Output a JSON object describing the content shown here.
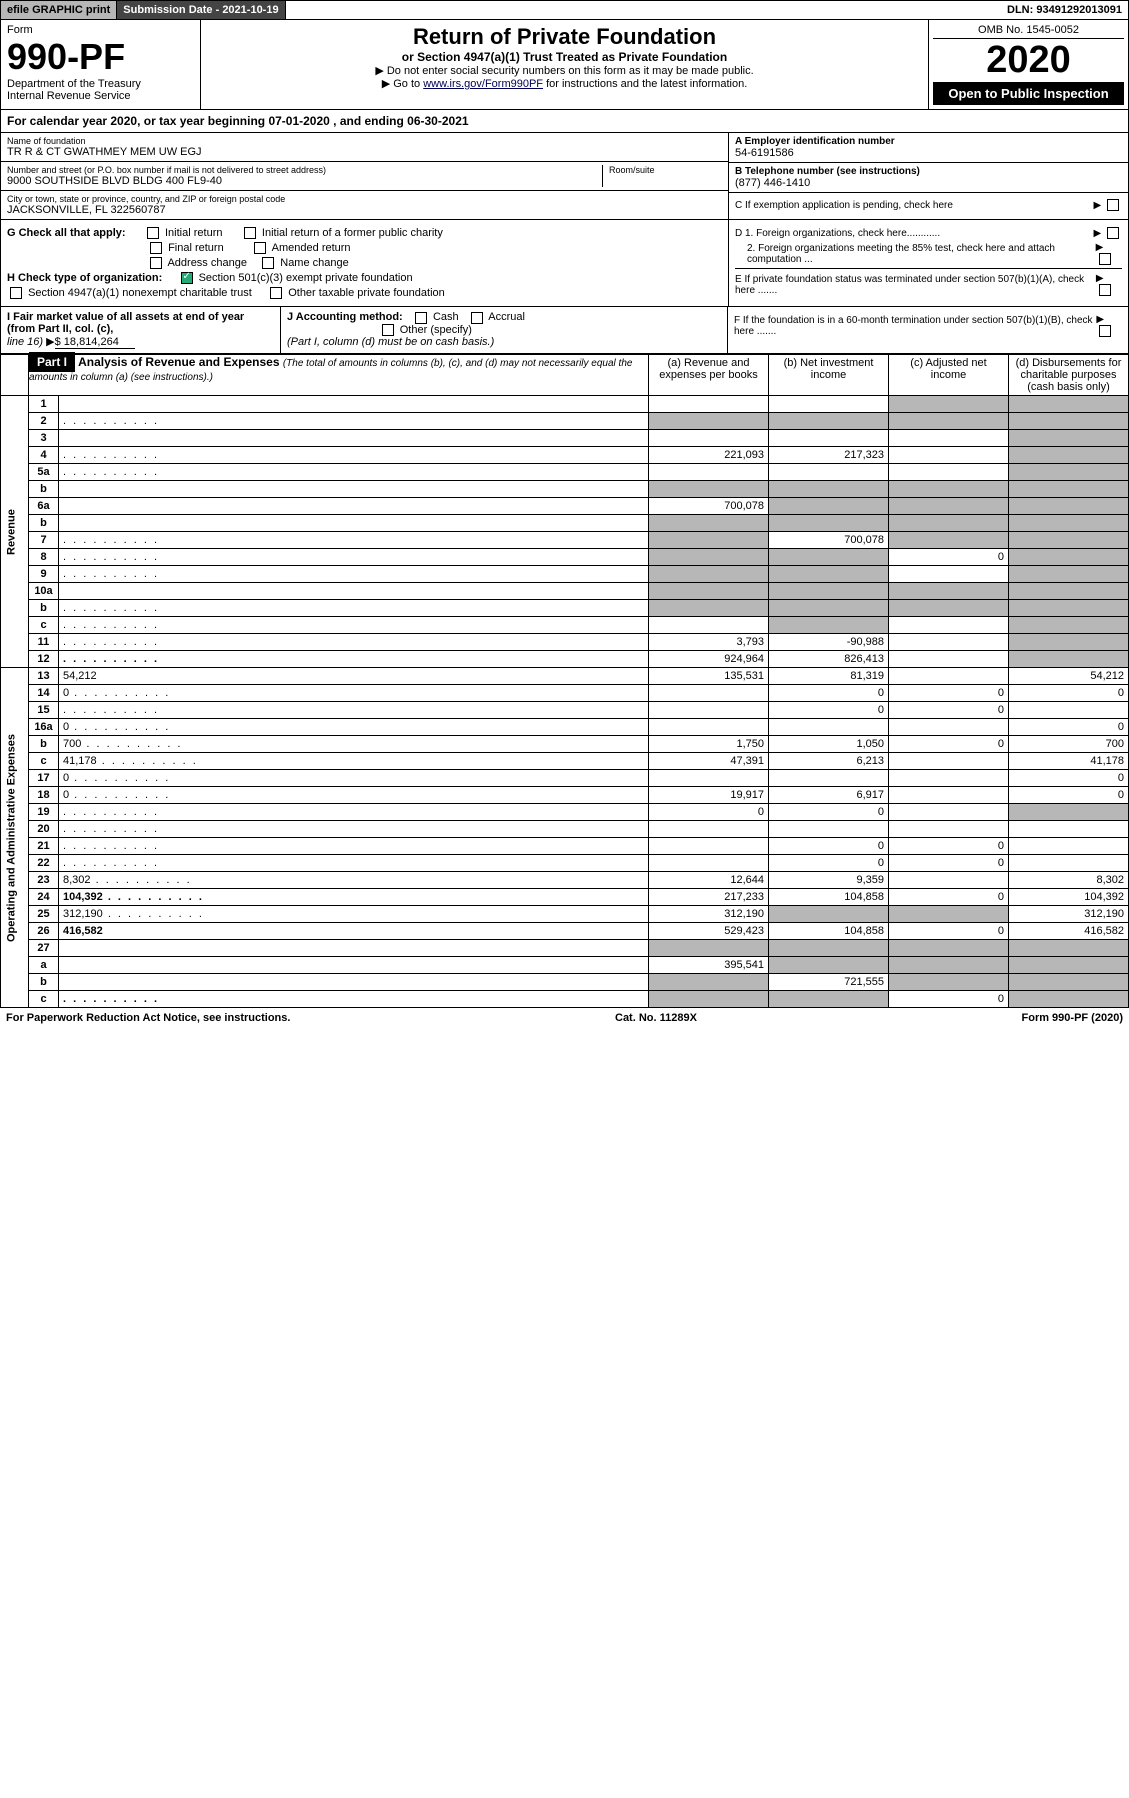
{
  "topbar": {
    "efile": "efile GRAPHIC print",
    "subdate_lbl": "Submission Date - 2021-10-19",
    "dln": "DLN: 93491292013091"
  },
  "header": {
    "form_lbl": "Form",
    "form_num": "990-PF",
    "dept1": "Department of the Treasury",
    "dept2": "Internal Revenue Service",
    "title": "Return of Private Foundation",
    "subtitle": "or Section 4947(a)(1) Trust Treated as Private Foundation",
    "inst1": "▶ Do not enter social security numbers on this form as it may be made public.",
    "inst2_pre": "▶ Go to ",
    "inst2_link": "www.irs.gov/Form990PF",
    "inst2_post": " for instructions and the latest information.",
    "omb": "OMB No. 1545-0052",
    "year": "2020",
    "open": "Open to Public Inspection"
  },
  "calyear": "For calendar year 2020, or tax year beginning 07-01-2020                          , and ending 06-30-2021",
  "info": {
    "name_lbl": "Name of foundation",
    "name": "TR R & CT GWATHMEY MEM UW EGJ",
    "addr_lbl": "Number and street (or P.O. box number if mail is not delivered to street address)",
    "addr": "9000 SOUTHSIDE BLVD BLDG 400 FL9-40",
    "room_lbl": "Room/suite",
    "city_lbl": "City or town, state or province, country, and ZIP or foreign postal code",
    "city": "JACKSONVILLE, FL 322560787",
    "a_lbl": "A Employer identification number",
    "a_val": "54-6191586",
    "b_lbl": "B Telephone number (see instructions)",
    "b_val": "(877) 446-1410",
    "c_lbl": "C If exemption application is pending, check here"
  },
  "g": {
    "lbl": "G Check all that apply:",
    "initial": "Initial return",
    "initial_former": "Initial return of a former public charity",
    "final": "Final return",
    "amended": "Amended return",
    "address": "Address change",
    "namechg": "Name change"
  },
  "h": {
    "lbl": "H Check type of organization:",
    "s501": "Section 501(c)(3) exempt private foundation",
    "s4947": "Section 4947(a)(1) nonexempt charitable trust",
    "other_tax": "Other taxable private foundation"
  },
  "d": {
    "d1": "D 1. Foreign organizations, check here............",
    "d2": "2. Foreign organizations meeting the 85% test, check here and attach computation ...",
    "e": "E  If private foundation status was terminated under section 507(b)(1)(A), check here .......",
    "f": "F  If the foundation is in a 60-month termination under section 507(b)(1)(B), check here ......."
  },
  "fmv": {
    "i_lbl": "I Fair market value of all assets at end of year (from Part II, col. (c),",
    "i_line": "line 16)",
    "i_val": "$  18,814,264",
    "j_lbl": "J Accounting method:",
    "cash": "Cash",
    "accrual": "Accrual",
    "other": "Other (specify)",
    "note": "(Part I, column (d) must be on cash basis.)"
  },
  "part1": {
    "label": "Part I",
    "title": "Analysis of Revenue and Expenses",
    "paren": "(The total of amounts in columns (b), (c), and (d) may not necessarily equal the amounts in column (a) (see instructions).)",
    "col_a": "(a)   Revenue and expenses per books",
    "col_b": "(b)   Net investment income",
    "col_c": "(c)   Adjusted net income",
    "col_d": "(d)   Disbursements for charitable purposes (cash basis only)"
  },
  "vlabels": {
    "revenue": "Revenue",
    "expenses": "Operating and Administrative Expenses"
  },
  "rows": [
    {
      "n": "1",
      "d": "",
      "a": "",
      "b": "",
      "c": "",
      "sa": false,
      "sb": false,
      "sc": true,
      "sd": true
    },
    {
      "n": "2",
      "d": "",
      "a": "",
      "b": "",
      "c": "",
      "sa": true,
      "sb": true,
      "sc": true,
      "sd": true,
      "dots": true
    },
    {
      "n": "3",
      "d": "",
      "a": "",
      "b": "",
      "c": "",
      "sa": false,
      "sb": false,
      "sc": false,
      "sd": true
    },
    {
      "n": "4",
      "d": "",
      "a": "221,093",
      "b": "217,323",
      "c": "",
      "sa": false,
      "sb": false,
      "sc": false,
      "sd": true,
      "dots": true
    },
    {
      "n": "5a",
      "d": "",
      "a": "",
      "b": "",
      "c": "",
      "sa": false,
      "sb": false,
      "sc": false,
      "sd": true,
      "dots": true
    },
    {
      "n": "b",
      "d": "",
      "a": "",
      "b": "",
      "c": "",
      "sa": true,
      "sb": true,
      "sc": true,
      "sd": true
    },
    {
      "n": "6a",
      "d": "",
      "a": "700,078",
      "b": "",
      "c": "",
      "sa": false,
      "sb": true,
      "sc": true,
      "sd": true
    },
    {
      "n": "b",
      "d": "",
      "a": "",
      "b": "",
      "c": "",
      "sa": true,
      "sb": true,
      "sc": true,
      "sd": true
    },
    {
      "n": "7",
      "d": "",
      "a": "",
      "b": "700,078",
      "c": "",
      "sa": true,
      "sb": false,
      "sc": true,
      "sd": true,
      "dots": true
    },
    {
      "n": "8",
      "d": "",
      "a": "",
      "b": "",
      "c": "0",
      "sa": true,
      "sb": true,
      "sc": false,
      "sd": true,
      "dots": true
    },
    {
      "n": "9",
      "d": "",
      "a": "",
      "b": "",
      "c": "",
      "sa": true,
      "sb": true,
      "sc": false,
      "sd": true,
      "dots": true
    },
    {
      "n": "10a",
      "d": "",
      "a": "",
      "b": "",
      "c": "",
      "sa": true,
      "sb": true,
      "sc": true,
      "sd": true
    },
    {
      "n": "b",
      "d": "",
      "a": "",
      "b": "",
      "c": "",
      "sa": true,
      "sb": true,
      "sc": true,
      "sd": true,
      "dots": true
    },
    {
      "n": "c",
      "d": "",
      "a": "",
      "b": "",
      "c": "",
      "sa": false,
      "sb": true,
      "sc": false,
      "sd": true,
      "dots": true
    },
    {
      "n": "11",
      "d": "",
      "a": "3,793",
      "b": "-90,988",
      "c": "",
      "sa": false,
      "sb": false,
      "sc": false,
      "sd": true,
      "dots": true
    },
    {
      "n": "12",
      "d": "",
      "a": "924,964",
      "b": "826,413",
      "c": "",
      "sa": false,
      "sb": false,
      "sc": false,
      "sd": true,
      "bold": true,
      "dots": true
    },
    {
      "n": "13",
      "d": "54,212",
      "a": "135,531",
      "b": "81,319",
      "c": "",
      "sa": false,
      "sb": false,
      "sc": false,
      "sd": false
    },
    {
      "n": "14",
      "d": "0",
      "a": "",
      "b": "0",
      "c": "0",
      "sa": false,
      "sb": false,
      "sc": false,
      "sd": false,
      "dots": true
    },
    {
      "n": "15",
      "d": "",
      "a": "",
      "b": "0",
      "c": "0",
      "sa": false,
      "sb": false,
      "sc": false,
      "sd": false,
      "dots": true
    },
    {
      "n": "16a",
      "d": "0",
      "a": "",
      "b": "",
      "c": "",
      "sa": false,
      "sb": false,
      "sc": false,
      "sd": false,
      "dots": true
    },
    {
      "n": "b",
      "d": "700",
      "a": "1,750",
      "b": "1,050",
      "c": "0",
      "sa": false,
      "sb": false,
      "sc": false,
      "sd": false,
      "dots": true
    },
    {
      "n": "c",
      "d": "41,178",
      "a": "47,391",
      "b": "6,213",
      "c": "",
      "sa": false,
      "sb": false,
      "sc": false,
      "sd": false,
      "dots": true
    },
    {
      "n": "17",
      "d": "0",
      "a": "",
      "b": "",
      "c": "",
      "sa": false,
      "sb": false,
      "sc": false,
      "sd": false,
      "dots": true
    },
    {
      "n": "18",
      "d": "0",
      "a": "19,917",
      "b": "6,917",
      "c": "",
      "sa": false,
      "sb": false,
      "sc": false,
      "sd": false,
      "dots": true
    },
    {
      "n": "19",
      "d": "",
      "a": "0",
      "b": "0",
      "c": "",
      "sa": false,
      "sb": false,
      "sc": false,
      "sd": true,
      "dots": true
    },
    {
      "n": "20",
      "d": "",
      "a": "",
      "b": "",
      "c": "",
      "sa": false,
      "sb": false,
      "sc": false,
      "sd": false,
      "dots": true
    },
    {
      "n": "21",
      "d": "",
      "a": "",
      "b": "0",
      "c": "0",
      "sa": false,
      "sb": false,
      "sc": false,
      "sd": false,
      "dots": true
    },
    {
      "n": "22",
      "d": "",
      "a": "",
      "b": "0",
      "c": "0",
      "sa": false,
      "sb": false,
      "sc": false,
      "sd": false,
      "dots": true
    },
    {
      "n": "23",
      "d": "8,302",
      "a": "12,644",
      "b": "9,359",
      "c": "",
      "sa": false,
      "sb": false,
      "sc": false,
      "sd": false,
      "dots": true
    },
    {
      "n": "24",
      "d": "104,392",
      "a": "217,233",
      "b": "104,858",
      "c": "0",
      "sa": false,
      "sb": false,
      "sc": false,
      "sd": false,
      "bold": true,
      "dots": true
    },
    {
      "n": "25",
      "d": "312,190",
      "a": "312,190",
      "b": "",
      "c": "",
      "sa": false,
      "sb": true,
      "sc": true,
      "sd": false,
      "dots": true
    },
    {
      "n": "26",
      "d": "416,582",
      "a": "529,423",
      "b": "104,858",
      "c": "0",
      "sa": false,
      "sb": false,
      "sc": false,
      "sd": false,
      "bold": true
    },
    {
      "n": "27",
      "d": "",
      "a": "",
      "b": "",
      "c": "",
      "sa": true,
      "sb": true,
      "sc": true,
      "sd": true
    },
    {
      "n": "a",
      "d": "",
      "a": "395,541",
      "b": "",
      "c": "",
      "sa": false,
      "sb": true,
      "sc": true,
      "sd": true,
      "bold": true
    },
    {
      "n": "b",
      "d": "",
      "a": "",
      "b": "721,555",
      "c": "",
      "sa": true,
      "sb": false,
      "sc": true,
      "sd": true,
      "bold": true
    },
    {
      "n": "c",
      "d": "",
      "a": "",
      "b": "",
      "c": "0",
      "sa": true,
      "sb": true,
      "sc": false,
      "sd": true,
      "bold": true,
      "dots": true
    }
  ],
  "footer": {
    "left": "For Paperwork Reduction Act Notice, see instructions.",
    "mid": "Cat. No. 11289X",
    "right": "Form 990-PF (2020)"
  }
}
